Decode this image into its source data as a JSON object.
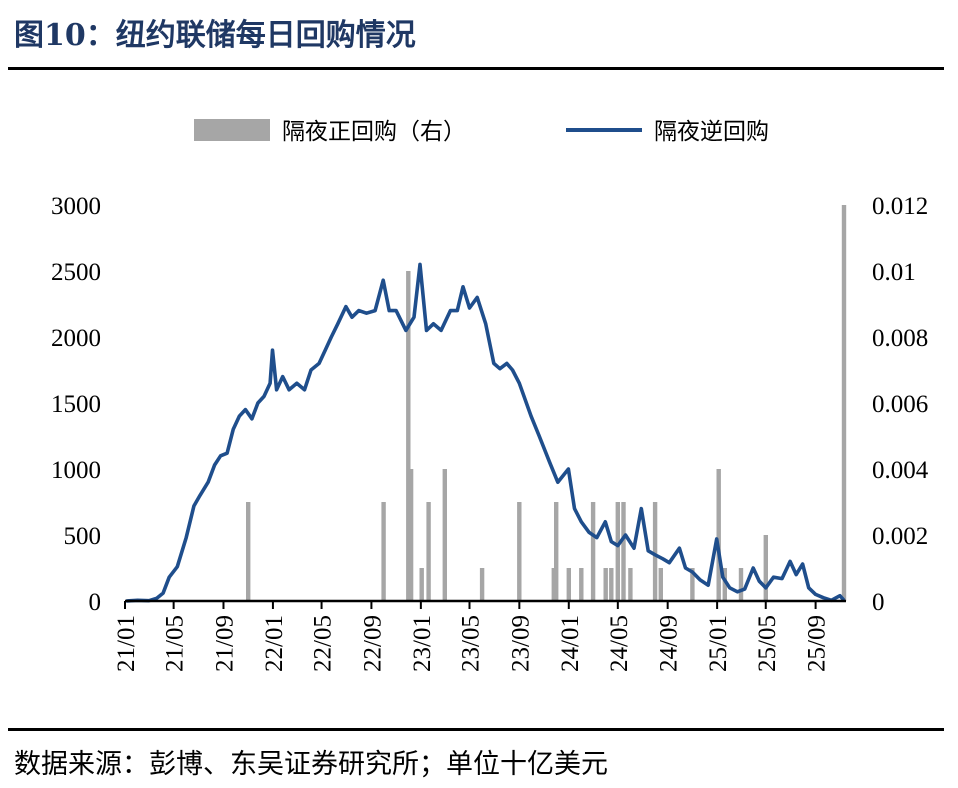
{
  "figure": {
    "title": "图10：纽约联储每日回购情况",
    "source": "数据来源：彭博、东吴证券研究所；单位十亿美元"
  },
  "colors": {
    "title": "#1f3864",
    "line": "#1f4e8c",
    "bar": "#a6a6a6",
    "axis": "#000000"
  },
  "chart_data": {
    "type": "bar+line",
    "legend": {
      "position": "top-center",
      "bar_label": "隔夜正回购（右）",
      "line_label": "隔夜逆回购"
    },
    "grid": false,
    "x_tick_labels": [
      "21/01",
      "21/05",
      "21/09",
      "22/01",
      "22/05",
      "22/09",
      "23/01",
      "23/05",
      "23/09",
      "24/01",
      "24/05",
      "24/09",
      "25/01",
      "25/05",
      "25/09"
    ],
    "x_range": [
      "2021-01-01",
      "2025-11-15"
    ],
    "left_axis": {
      "min": 0,
      "max": 3000,
      "ticks": [
        "0",
        "500",
        "1000",
        "1500",
        "2000",
        "2500",
        "3000"
      ]
    },
    "right_axis": {
      "min": 0,
      "max": 0.012,
      "ticks": [
        "0",
        "0.002",
        "0.004",
        "0.006",
        "0.008",
        "0.01",
        "0.012"
      ]
    },
    "series": [
      {
        "name": "隔夜逆回购",
        "type": "line",
        "axis": "left",
        "points": [
          [
            "2021-01-04",
            0
          ],
          [
            "2021-02-01",
            5
          ],
          [
            "2021-03-01",
            2
          ],
          [
            "2021-03-20",
            20
          ],
          [
            "2021-04-05",
            60
          ],
          [
            "2021-04-20",
            180
          ],
          [
            "2021-05-10",
            260
          ],
          [
            "2021-06-01",
            480
          ],
          [
            "2021-06-20",
            720
          ],
          [
            "2021-07-05",
            800
          ],
          [
            "2021-07-25",
            900
          ],
          [
            "2021-08-10",
            1030
          ],
          [
            "2021-08-25",
            1100
          ],
          [
            "2021-09-10",
            1120
          ],
          [
            "2021-09-25",
            1300
          ],
          [
            "2021-10-10",
            1400
          ],
          [
            "2021-10-25",
            1450
          ],
          [
            "2021-11-10",
            1380
          ],
          [
            "2021-11-25",
            1500
          ],
          [
            "2021-12-10",
            1550
          ],
          [
            "2021-12-25",
            1650
          ],
          [
            "2021-12-31",
            1900
          ],
          [
            "2022-01-10",
            1600
          ],
          [
            "2022-01-25",
            1700
          ],
          [
            "2022-02-10",
            1600
          ],
          [
            "2022-03-01",
            1650
          ],
          [
            "2022-03-20",
            1600
          ],
          [
            "2022-04-05",
            1750
          ],
          [
            "2022-04-25",
            1800
          ],
          [
            "2022-05-10",
            1900
          ],
          [
            "2022-05-25",
            2000
          ],
          [
            "2022-06-10",
            2100
          ],
          [
            "2022-06-30",
            2230
          ],
          [
            "2022-07-15",
            2150
          ],
          [
            "2022-08-01",
            2200
          ],
          [
            "2022-08-20",
            2180
          ],
          [
            "2022-09-10",
            2200
          ],
          [
            "2022-09-30",
            2430
          ],
          [
            "2022-10-15",
            2200
          ],
          [
            "2022-11-01",
            2200
          ],
          [
            "2022-11-25",
            2050
          ],
          [
            "2022-12-15",
            2150
          ],
          [
            "2022-12-30",
            2550
          ],
          [
            "2023-01-15",
            2050
          ],
          [
            "2023-02-01",
            2100
          ],
          [
            "2023-02-20",
            2050
          ],
          [
            "2023-03-15",
            2200
          ],
          [
            "2023-04-01",
            2200
          ],
          [
            "2023-04-15",
            2380
          ],
          [
            "2023-05-01",
            2220
          ],
          [
            "2023-05-20",
            2300
          ],
          [
            "2023-06-10",
            2100
          ],
          [
            "2023-06-30",
            1800
          ],
          [
            "2023-07-15",
            1760
          ],
          [
            "2023-08-01",
            1800
          ],
          [
            "2023-08-15",
            1750
          ],
          [
            "2023-09-01",
            1650
          ],
          [
            "2023-09-30",
            1400
          ],
          [
            "2023-10-20",
            1250
          ],
          [
            "2023-11-15",
            1050
          ],
          [
            "2023-12-05",
            900
          ],
          [
            "2023-12-31",
            1000
          ],
          [
            "2024-01-15",
            700
          ],
          [
            "2024-02-01",
            600
          ],
          [
            "2024-02-20",
            520
          ],
          [
            "2024-03-10",
            480
          ],
          [
            "2024-03-31",
            600
          ],
          [
            "2024-04-15",
            450
          ],
          [
            "2024-05-01",
            420
          ],
          [
            "2024-05-20",
            500
          ],
          [
            "2024-06-10",
            400
          ],
          [
            "2024-06-28",
            700
          ],
          [
            "2024-07-15",
            380
          ],
          [
            "2024-08-01",
            350
          ],
          [
            "2024-08-20",
            320
          ],
          [
            "2024-09-05",
            290
          ],
          [
            "2024-09-30",
            400
          ],
          [
            "2024-10-15",
            250
          ],
          [
            "2024-11-01",
            220
          ],
          [
            "2024-11-20",
            160
          ],
          [
            "2024-12-10",
            120
          ],
          [
            "2024-12-31",
            470
          ],
          [
            "2025-01-15",
            180
          ],
          [
            "2025-02-01",
            100
          ],
          [
            "2025-02-20",
            70
          ],
          [
            "2025-03-10",
            90
          ],
          [
            "2025-03-31",
            250
          ],
          [
            "2025-04-15",
            150
          ],
          [
            "2025-05-01",
            100
          ],
          [
            "2025-05-20",
            180
          ],
          [
            "2025-06-10",
            170
          ],
          [
            "2025-06-30",
            300
          ],
          [
            "2025-07-15",
            200
          ],
          [
            "2025-07-31",
            280
          ],
          [
            "2025-08-15",
            100
          ],
          [
            "2025-09-01",
            50
          ],
          [
            "2025-09-20",
            25
          ],
          [
            "2025-10-10",
            5
          ],
          [
            "2025-10-31",
            40
          ],
          [
            "2025-11-10",
            5
          ]
        ]
      },
      {
        "name": "隔夜正回购（右）",
        "type": "bar",
        "axis": "right",
        "points": [
          [
            "2021-11-01",
            0.003
          ],
          [
            "2022-10-01",
            0.003
          ],
          [
            "2022-12-01",
            0.01
          ],
          [
            "2022-12-08",
            0.004
          ],
          [
            "2023-01-03",
            0.001
          ],
          [
            "2023-01-20",
            0.003
          ],
          [
            "2023-03-01",
            0.004
          ],
          [
            "2023-06-01",
            0.001
          ],
          [
            "2023-09-01",
            0.003
          ],
          [
            "2023-11-25",
            0.001
          ],
          [
            "2023-12-01",
            0.003
          ],
          [
            "2024-01-01",
            0.001
          ],
          [
            "2024-02-01",
            0.001
          ],
          [
            "2024-03-01",
            0.003
          ],
          [
            "2024-04-01",
            0.001
          ],
          [
            "2024-04-15",
            0.001
          ],
          [
            "2024-05-01",
            0.003
          ],
          [
            "2024-05-15",
            0.003
          ],
          [
            "2024-06-01",
            0.001
          ],
          [
            "2024-08-01",
            0.003
          ],
          [
            "2024-08-15",
            0.001
          ],
          [
            "2024-11-01",
            0.001
          ],
          [
            "2025-01-05",
            0.004
          ],
          [
            "2025-01-20",
            0.001
          ],
          [
            "2025-03-01",
            0.001
          ],
          [
            "2025-05-01",
            0.002
          ],
          [
            "2025-11-10",
            0.012
          ]
        ]
      }
    ]
  }
}
